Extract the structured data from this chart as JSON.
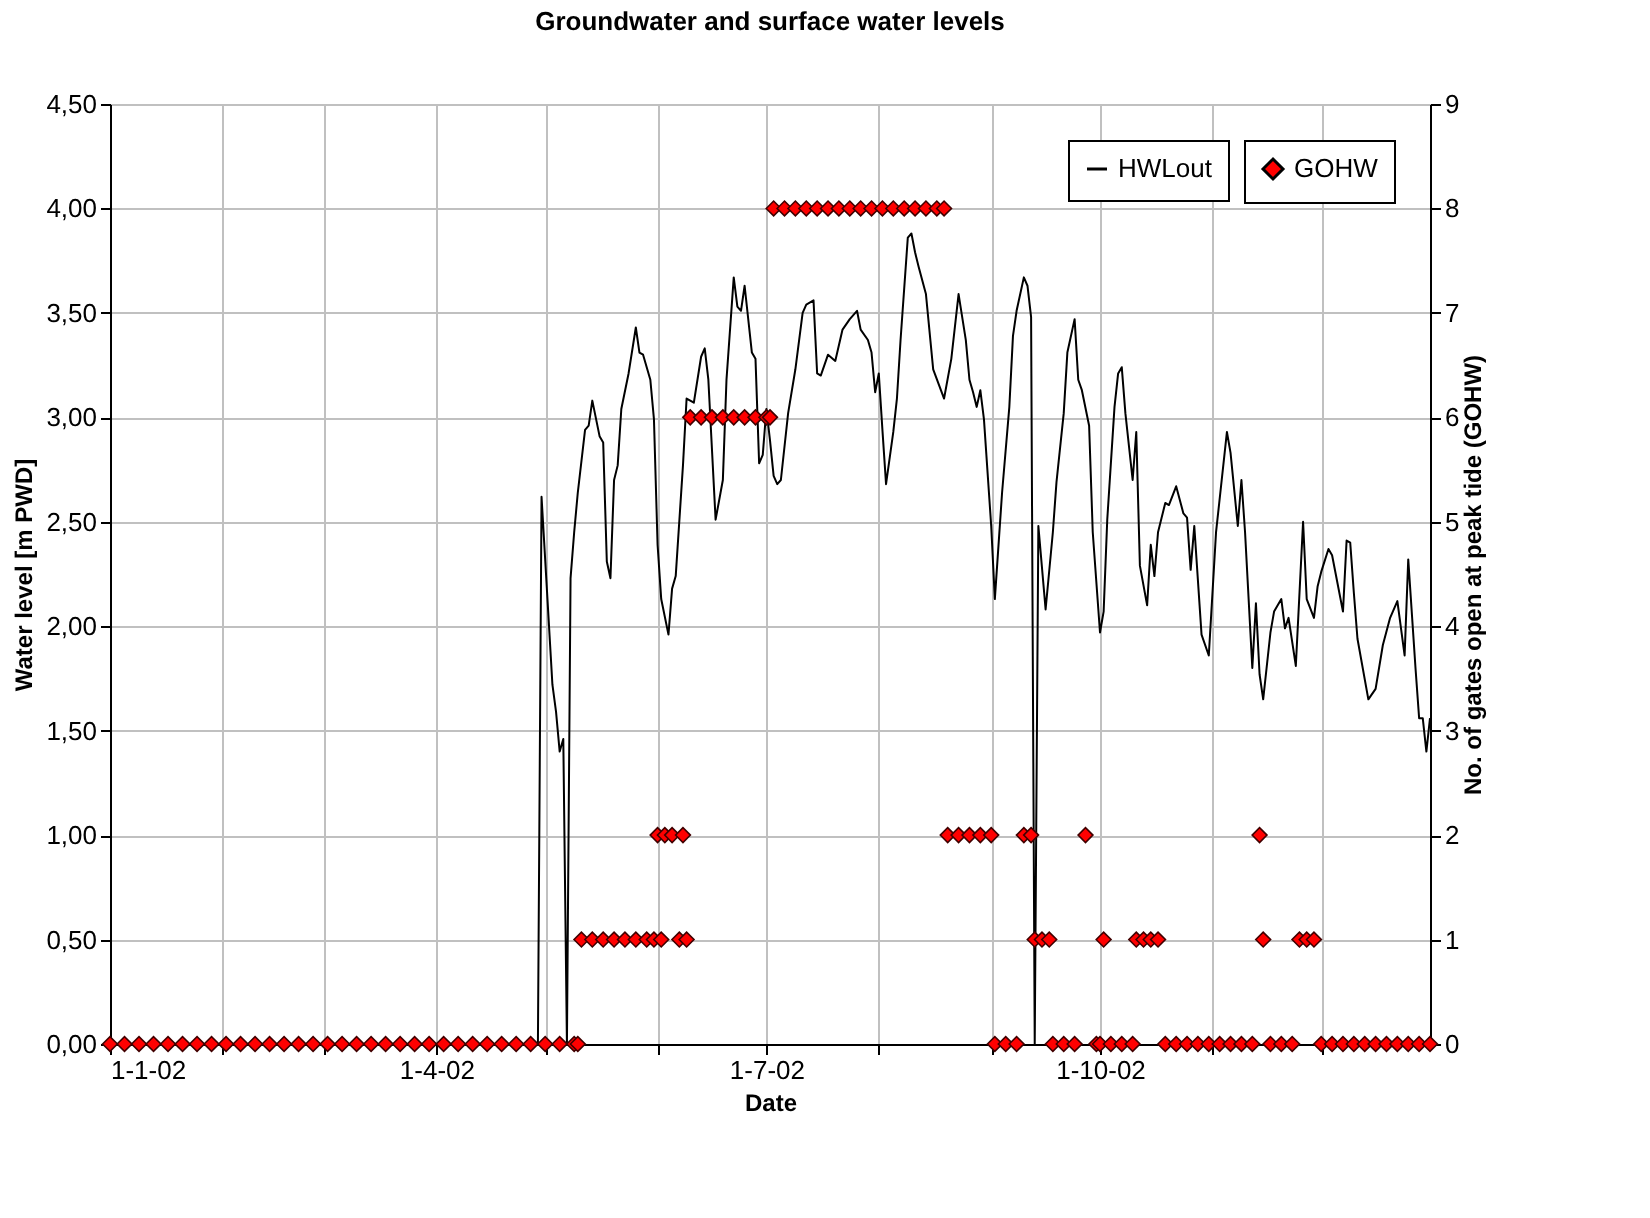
{
  "chart_data": {
    "type": "line",
    "title": "Groundwater and surface water levels",
    "xlabel": "Date",
    "ylabel": "Water level [m PWD]",
    "y2label": "No. of gates open at peak tide (GOHW)",
    "xlim": [
      "2002-01-01",
      "2002-12-31"
    ],
    "xticks": [
      {
        "value": "2002-01-01",
        "label": "1-1-02"
      },
      {
        "value": "2002-02-01",
        "label": null
      },
      {
        "value": "2002-03-01",
        "label": null
      },
      {
        "value": "2002-04-01",
        "label": "1-4-02"
      },
      {
        "value": "2002-05-01",
        "label": null
      },
      {
        "value": "2002-06-01",
        "label": null
      },
      {
        "value": "2002-07-01",
        "label": "1-7-02"
      },
      {
        "value": "2002-08-01",
        "label": null
      },
      {
        "value": "2002-09-01",
        "label": null
      },
      {
        "value": "2002-10-01",
        "label": "1-10-02"
      },
      {
        "value": "2002-11-01",
        "label": null
      },
      {
        "value": "2002-12-01",
        "label": null
      }
    ],
    "ylim": [
      0,
      4.5
    ],
    "yticks": [
      {
        "value": 0,
        "label": "0,00"
      },
      {
        "value": 0.5,
        "label": "0,50"
      },
      {
        "value": 1,
        "label": "1,00"
      },
      {
        "value": 1.5,
        "label": "1,50"
      },
      {
        "value": 2,
        "label": "2,00"
      },
      {
        "value": 2.5,
        "label": "2,50"
      },
      {
        "value": 3,
        "label": "3,00"
      },
      {
        "value": 3.5,
        "label": "3,50"
      },
      {
        "value": 4,
        "label": "4,00"
      },
      {
        "value": 4.5,
        "label": "4,50"
      }
    ],
    "y2lim": [
      0,
      9
    ],
    "y2ticks": [
      0,
      1,
      2,
      3,
      4,
      5,
      6,
      7,
      8,
      9
    ],
    "grid": true,
    "legend": "top right",
    "series": [
      {
        "name": "HWLout",
        "type": "line",
        "color": "#000000",
        "line_style": "solid",
        "x": [
          "2002-01-01",
          "2002-04-29",
          "2002-04-30",
          "2002-05-03",
          "2002-05-04",
          "2002-05-05",
          "2002-05-06",
          "2002-05-07",
          "2002-05-08",
          "2002-05-09",
          "2002-05-10",
          "2002-05-12",
          "2002-05-13",
          "2002-05-14",
          "2002-05-16",
          "2002-05-17",
          "2002-05-18",
          "2002-05-19",
          "2002-05-20",
          "2002-05-21",
          "2002-05-22",
          "2002-05-24",
          "2002-05-26",
          "2002-05-27",
          "2002-05-28",
          "2002-05-30",
          "2002-05-31",
          "2002-06-01",
          "2002-06-02",
          "2002-06-04",
          "2002-06-05",
          "2002-06-06",
          "2002-06-08",
          "2002-06-09",
          "2002-06-11",
          "2002-06-13",
          "2002-06-14",
          "2002-06-15",
          "2002-06-17",
          "2002-06-19",
          "2002-06-20",
          "2002-06-22",
          "2002-06-23",
          "2002-06-24",
          "2002-06-25",
          "2002-06-27",
          "2002-06-28",
          "2002-06-29",
          "2002-06-30",
          "2002-07-01",
          "2002-07-02",
          "2002-07-03",
          "2002-07-04",
          "2002-07-05",
          "2002-07-07",
          "2002-07-09",
          "2002-07-11",
          "2002-07-12",
          "2002-07-14",
          "2002-07-15",
          "2002-07-16",
          "2002-07-18",
          "2002-07-20",
          "2002-07-22",
          "2002-07-24",
          "2002-07-26",
          "2002-07-27",
          "2002-07-29",
          "2002-07-30",
          "2002-07-31",
          "2002-08-01",
          "2002-08-02",
          "2002-08-03",
          "2002-08-05",
          "2002-08-06",
          "2002-08-07",
          "2002-08-09",
          "2002-08-10",
          "2002-08-11",
          "2002-08-12",
          "2002-08-14",
          "2002-08-16",
          "2002-08-19",
          "2002-08-21",
          "2002-08-23",
          "2002-08-25",
          "2002-08-26",
          "2002-08-27",
          "2002-08-28",
          "2002-08-29",
          "2002-08-30",
          "2002-09-01",
          "2002-09-02",
          "2002-09-04",
          "2002-09-06",
          "2002-09-07",
          "2002-09-08",
          "2002-09-10",
          "2002-09-11",
          "2002-09-12",
          "2002-09-13",
          "2002-09-14",
          "2002-09-16",
          "2002-09-18",
          "2002-09-19",
          "2002-09-21",
          "2002-09-22",
          "2002-09-24",
          "2002-09-25",
          "2002-09-26",
          "2002-09-28",
          "2002-09-29",
          "2002-10-01",
          "2002-10-02",
          "2002-10-03",
          "2002-10-05",
          "2002-10-06",
          "2002-10-07",
          "2002-10-08",
          "2002-10-10",
          "2002-10-11",
          "2002-10-12",
          "2002-10-14",
          "2002-10-15",
          "2002-10-16",
          "2002-10-17",
          "2002-10-19",
          "2002-10-20",
          "2002-10-22",
          "2002-10-24",
          "2002-10-25",
          "2002-10-26",
          "2002-10-27",
          "2002-10-29",
          "2002-10-31",
          "2002-11-02",
          "2002-11-05",
          "2002-11-06",
          "2002-11-08",
          "2002-11-09",
          "2002-11-10",
          "2002-11-12",
          "2002-11-13",
          "2002-11-14",
          "2002-11-15",
          "2002-11-17",
          "2002-11-18",
          "2002-11-20",
          "2002-11-21",
          "2002-11-22",
          "2002-11-24",
          "2002-11-26",
          "2002-11-27",
          "2002-11-29",
          "2002-11-30",
          "2002-12-01",
          "2002-12-03",
          "2002-12-04",
          "2002-12-05",
          "2002-12-07",
          "2002-12-08",
          "2002-12-09",
          "2002-12-10",
          "2002-12-11",
          "2002-12-14",
          "2002-12-16",
          "2002-12-18",
          "2002-12-20",
          "2002-12-22",
          "2002-12-24",
          "2002-12-25",
          "2002-12-27",
          "2002-12-28",
          "2002-12-29",
          "2002-12-30",
          "2002-12-31"
        ],
        "values": [
          0,
          0,
          2.62,
          1.72,
          1.59,
          1.4,
          1.46,
          0,
          2.23,
          2.45,
          2.64,
          2.94,
          2.96,
          3.08,
          2.91,
          2.88,
          2.31,
          2.23,
          2.7,
          2.77,
          3.04,
          3.21,
          3.43,
          3.31,
          3.3,
          3.18,
          2.99,
          2.39,
          2.13,
          1.96,
          2.18,
          2.24,
          2.77,
          3.09,
          3.07,
          3.29,
          3.33,
          3.18,
          2.51,
          2.7,
          3.18,
          3.67,
          3.53,
          3.51,
          3.63,
          3.31,
          3.28,
          2.78,
          2.82,
          3.04,
          2.89,
          2.72,
          2.68,
          2.7,
          3.02,
          3.23,
          3.5,
          3.54,
          3.56,
          3.21,
          3.2,
          3.3,
          3.27,
          3.42,
          3.47,
          3.51,
          3.42,
          3.37,
          3.31,
          3.12,
          3.21,
          2.94,
          2.68,
          2.93,
          3.09,
          3.37,
          3.86,
          3.88,
          3.79,
          3.72,
          3.59,
          3.23,
          3.09,
          3.28,
          3.59,
          3.37,
          3.18,
          3.12,
          3.05,
          3.13,
          2.99,
          2.48,
          2.13,
          2.64,
          3.05,
          3.39,
          3.51,
          3.67,
          3.63,
          3.48,
          0,
          2.48,
          2.08,
          2.45,
          2.69,
          3.02,
          3.31,
          3.47,
          3.18,
          3.13,
          2.96,
          2.45,
          1.97,
          2.07,
          2.51,
          3.05,
          3.21,
          3.24,
          3.02,
          2.7,
          2.93,
          2.29,
          2.1,
          2.39,
          2.24,
          2.45,
          2.59,
          2.58,
          2.67,
          2.54,
          2.52,
          2.27,
          2.48,
          1.96,
          1.86,
          2.45,
          2.93,
          2.83,
          2.48,
          2.7,
          2.45,
          1.8,
          2.11,
          1.77,
          1.65,
          1.97,
          2.07,
          2.13,
          1.99,
          2.04,
          1.81,
          2.5,
          2.13,
          2.04,
          2.19,
          2.26,
          2.37,
          2.34,
          2.25,
          2.07,
          2.41,
          2.4,
          2.16,
          1.94,
          1.65,
          1.7,
          1.91,
          2.04,
          2.12,
          1.86,
          2.32,
          1.8,
          1.56,
          1.56,
          1.4,
          1.56
        ]
      },
      {
        "name": "GOHW",
        "type": "scatter",
        "axis": "y2",
        "color": "#ff0000",
        "marker": "diamond",
        "x": [
          "2002-01-01",
          "2002-01-05",
          "2002-01-09",
          "2002-01-13",
          "2002-01-17",
          "2002-01-21",
          "2002-01-25",
          "2002-01-29",
          "2002-02-02",
          "2002-02-06",
          "2002-02-10",
          "2002-02-14",
          "2002-02-18",
          "2002-02-22",
          "2002-02-26",
          "2002-03-02",
          "2002-03-06",
          "2002-03-10",
          "2002-03-14",
          "2002-03-18",
          "2002-03-22",
          "2002-03-26",
          "2002-03-30",
          "2002-04-03",
          "2002-04-07",
          "2002-04-11",
          "2002-04-15",
          "2002-04-19",
          "2002-04-23",
          "2002-04-27",
          "2002-05-01",
          "2002-05-05",
          "2002-05-09",
          "2002-05-10",
          "2002-05-11",
          "2002-05-14",
          "2002-05-17",
          "2002-05-20",
          "2002-05-23",
          "2002-05-26",
          "2002-05-29",
          "2002-05-31",
          "2002-06-01",
          "2002-06-02",
          "2002-06-03",
          "2002-06-05",
          "2002-06-07",
          "2002-06-08",
          "2002-06-09",
          "2002-06-10",
          "2002-06-13",
          "2002-06-16",
          "2002-06-19",
          "2002-06-22",
          "2002-06-25",
          "2002-06-28",
          "2002-07-01",
          "2002-07-02",
          "2002-07-03",
          "2002-07-06",
          "2002-07-09",
          "2002-07-12",
          "2002-07-15",
          "2002-07-18",
          "2002-07-21",
          "2002-07-24",
          "2002-07-27",
          "2002-07-30",
          "2002-08-02",
          "2002-08-05",
          "2002-08-08",
          "2002-08-11",
          "2002-08-14",
          "2002-08-17",
          "2002-08-19",
          "2002-08-20",
          "2002-08-23",
          "2002-08-26",
          "2002-08-29",
          "2002-09-01",
          "2002-09-02",
          "2002-09-05",
          "2002-09-08",
          "2002-09-10",
          "2002-09-12",
          "2002-09-13",
          "2002-09-15",
          "2002-09-17",
          "2002-09-18",
          "2002-09-21",
          "2002-09-24",
          "2002-09-27",
          "2002-09-30",
          "2002-10-01",
          "2002-10-02",
          "2002-10-04",
          "2002-10-07",
          "2002-10-10",
          "2002-10-11",
          "2002-10-13",
          "2002-10-15",
          "2002-10-17",
          "2002-10-19",
          "2002-10-22",
          "2002-10-25",
          "2002-10-28",
          "2002-10-31",
          "2002-11-03",
          "2002-11-06",
          "2002-11-09",
          "2002-11-12",
          "2002-11-14",
          "2002-11-15",
          "2002-11-17",
          "2002-11-20",
          "2002-11-23",
          "2002-11-25",
          "2002-11-27",
          "2002-11-29",
          "2002-12-01",
          "2002-12-04",
          "2002-12-07",
          "2002-12-10",
          "2002-12-13",
          "2002-12-16",
          "2002-12-19",
          "2002-12-22",
          "2002-12-25",
          "2002-12-28",
          "2002-12-31"
        ],
        "values": [
          0,
          0,
          0,
          0,
          0,
          0,
          0,
          0,
          0,
          0,
          0,
          0,
          0,
          0,
          0,
          0,
          0,
          0,
          0,
          0,
          0,
          0,
          0,
          0,
          0,
          0,
          0,
          0,
          0,
          0,
          0,
          0,
          0,
          0,
          1,
          1,
          1,
          1,
          1,
          1,
          1,
          1,
          2,
          1,
          2,
          2,
          1,
          2,
          1,
          6,
          6,
          6,
          6,
          6,
          6,
          6,
          6,
          6,
          8,
          8,
          8,
          8,
          8,
          8,
          8,
          8,
          8,
          8,
          8,
          8,
          8,
          8,
          8,
          8,
          8,
          2,
          2,
          2,
          2,
          2,
          0,
          0,
          0,
          2,
          2,
          1,
          1,
          1,
          0,
          0,
          0,
          2,
          0,
          0,
          1,
          0,
          0,
          0,
          1,
          1,
          1,
          1,
          0,
          0,
          0,
          0,
          0,
          0,
          0,
          0,
          0,
          2,
          1,
          0,
          0,
          0,
          1,
          1,
          1,
          0,
          0,
          0,
          0,
          0,
          0,
          0,
          0,
          0,
          0,
          0
        ]
      }
    ]
  }
}
